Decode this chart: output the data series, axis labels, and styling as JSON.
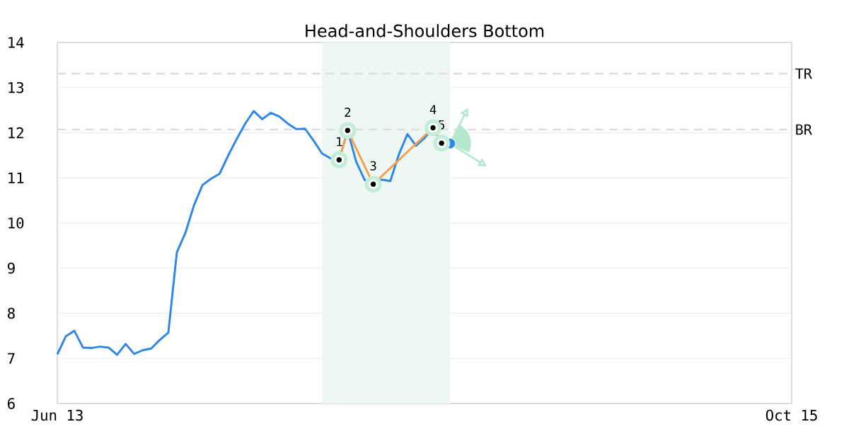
{
  "chart_data": {
    "type": "line",
    "title": "Head-and-Shoulders Bottom",
    "categories": [
      "Jun 13",
      null,
      null,
      null,
      null,
      null,
      null,
      null,
      null,
      null,
      null,
      null,
      null,
      null,
      null,
      null,
      null,
      null,
      null,
      null,
      null,
      null,
      null,
      null,
      null,
      null,
      null,
      null,
      null,
      null,
      null,
      null,
      null,
      null,
      null,
      null,
      null,
      null,
      null,
      null,
      null,
      null,
      null,
      null,
      null,
      null,
      null,
      null,
      null,
      null,
      null,
      null,
      null,
      null,
      null,
      null,
      null,
      null,
      null,
      null,
      null,
      null,
      null,
      null,
      null,
      null,
      null,
      null,
      null,
      null,
      null,
      null,
      null,
      null,
      null,
      null,
      null,
      null,
      null,
      null,
      null,
      null,
      null,
      null,
      null,
      null,
      "Oct 15"
    ],
    "ylim": [
      6,
      14
    ],
    "yticks": [
      6,
      7,
      8,
      9,
      10,
      11,
      12,
      13,
      14
    ],
    "grid": "y",
    "series": [
      {
        "color": "#2e86e8",
        "values": [
          7.09,
          7.49,
          7.61,
          7.24,
          7.23,
          7.26,
          7.24,
          7.08,
          7.32,
          7.1,
          7.18,
          7.22,
          7.41,
          7.57,
          9.35,
          9.78,
          10.39,
          10.84,
          10.98,
          11.09,
          11.49,
          11.86,
          12.2,
          12.48,
          12.3,
          12.44,
          12.36,
          12.2,
          12.08,
          12.09,
          11.83,
          11.54,
          11.43,
          11.4,
          12.05,
          11.36,
          10.95,
          10.86,
          10.96,
          10.93,
          11.52,
          11.97,
          11.71,
          11.88,
          12.11,
          11.77,
          11.76,
          null,
          null,
          null,
          null,
          null,
          null,
          null,
          null,
          null,
          null,
          null,
          null,
          null,
          null,
          null,
          null,
          null,
          null,
          null,
          null,
          null,
          null,
          null,
          null,
          null,
          null,
          null,
          null,
          null,
          null,
          null,
          null,
          null,
          null,
          null,
          null,
          null,
          null,
          null,
          null
        ]
      },
      {
        "color": "#f5a04a",
        "marker": "circle",
        "values": [
          null,
          null,
          null,
          null,
          null,
          null,
          null,
          null,
          null,
          null,
          null,
          null,
          null,
          null,
          null,
          null,
          null,
          null,
          null,
          null,
          null,
          null,
          null,
          null,
          null,
          null,
          null,
          null,
          null,
          null,
          null,
          null,
          null,
          11.4,
          12.05,
          null,
          null,
          10.86,
          null,
          null,
          null,
          null,
          null,
          null,
          12.11,
          11.77,
          null,
          null,
          null,
          null,
          null,
          null,
          null,
          null,
          null,
          null,
          null,
          null,
          null,
          null,
          null,
          null,
          null,
          null,
          null,
          null,
          null,
          null,
          null,
          null,
          null,
          null,
          null,
          null,
          null,
          null,
          null,
          null,
          null,
          null,
          null,
          null,
          null,
          null,
          null,
          null,
          null
        ]
      }
    ],
    "ref_lines": [
      {
        "axis": "y",
        "value": 13.31,
        "label": "TR",
        "color": "#dddddd",
        "line_style": "dashed"
      },
      {
        "axis": "y",
        "value": 12.07,
        "label": "BR",
        "color": "#dddddd",
        "line_style": "dashed"
      }
    ],
    "annotations": [
      {
        "text": "1",
        "y": 11.4
      },
      {
        "text": "2",
        "y": 12.05
      },
      {
        "text": "3",
        "y": 10.86
      },
      {
        "text": "4",
        "y": 12.11
      },
      {
        "text": "5",
        "y": 11.77
      }
    ]
  }
}
